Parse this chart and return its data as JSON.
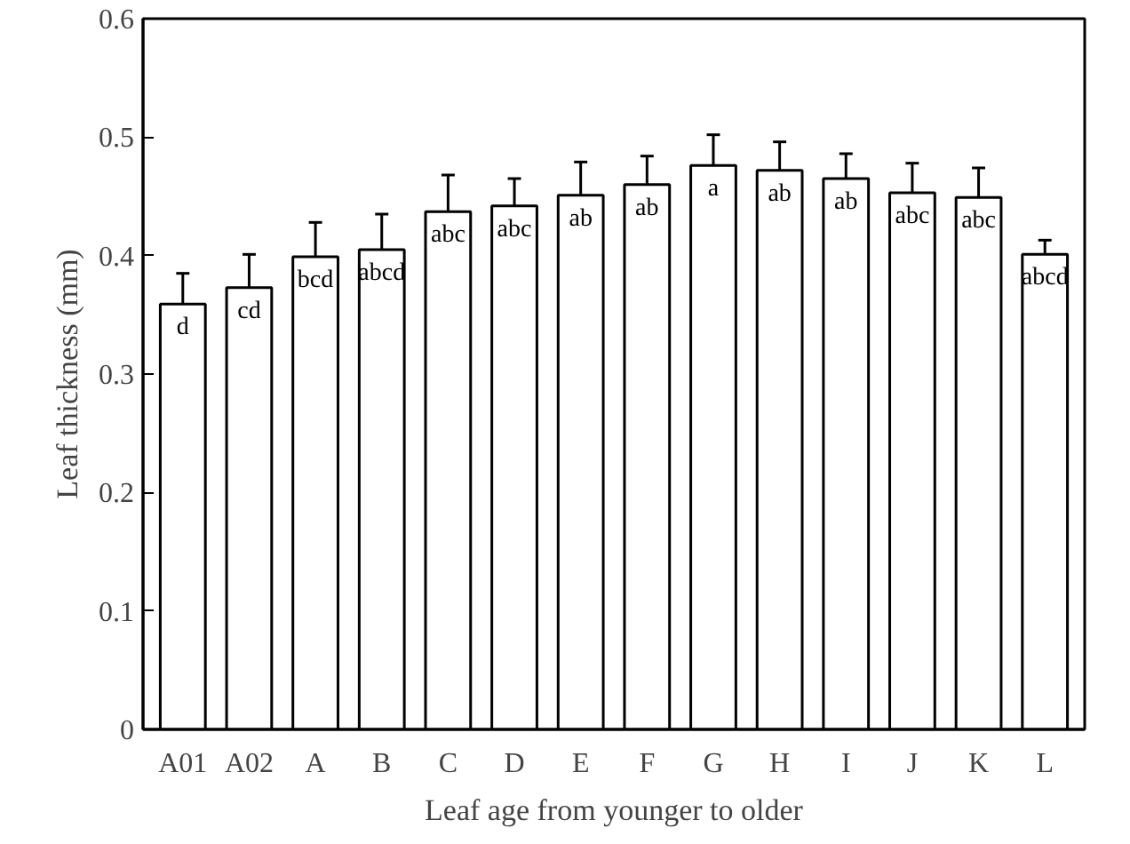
{
  "chart_data": {
    "type": "bar",
    "xlabel": "Leaf age from younger to older",
    "ylabel": "Leaf thickness (mm)",
    "categories": [
      "A01",
      "A02",
      "A",
      "B",
      "C",
      "D",
      "E",
      "F",
      "G",
      "H",
      "I",
      "J",
      "K",
      "L"
    ],
    "values": [
      0.359,
      0.373,
      0.399,
      0.405,
      0.437,
      0.442,
      0.451,
      0.46,
      0.476,
      0.472,
      0.465,
      0.453,
      0.449,
      0.401
    ],
    "errors": [
      0.026,
      0.028,
      0.029,
      0.03,
      0.031,
      0.023,
      0.028,
      0.024,
      0.026,
      0.024,
      0.021,
      0.025,
      0.025,
      0.012
    ],
    "color": "#ffffff",
    "ylim": [
      0,
      0.6
    ],
    "yticks": [
      0,
      0.1,
      0.2,
      0.3,
      0.4,
      0.5,
      0.6
    ],
    "annotations": [
      {
        "text": "d",
        "x": "A01",
        "y": 0.359
      },
      {
        "text": "cd",
        "x": "A02",
        "y": 0.373
      },
      {
        "text": "bcd",
        "x": "A",
        "y": 0.399
      },
      {
        "text": "abcd",
        "x": "B",
        "y": 0.405
      },
      {
        "text": "abc",
        "x": "C",
        "y": 0.437
      },
      {
        "text": "abc",
        "x": "D",
        "y": 0.442
      },
      {
        "text": "ab",
        "x": "E",
        "y": 0.451
      },
      {
        "text": "ab",
        "x": "F",
        "y": 0.46
      },
      {
        "text": "a",
        "x": "G",
        "y": 0.476
      },
      {
        "text": "ab",
        "x": "H",
        "y": 0.472
      },
      {
        "text": "ab",
        "x": "I",
        "y": 0.465
      },
      {
        "text": "abc",
        "x": "J",
        "y": 0.453
      },
      {
        "text": "abc",
        "x": "K",
        "y": 0.449
      },
      {
        "text": "abcd",
        "x": "L",
        "y": 0.401
      }
    ],
    "grid": false
  }
}
